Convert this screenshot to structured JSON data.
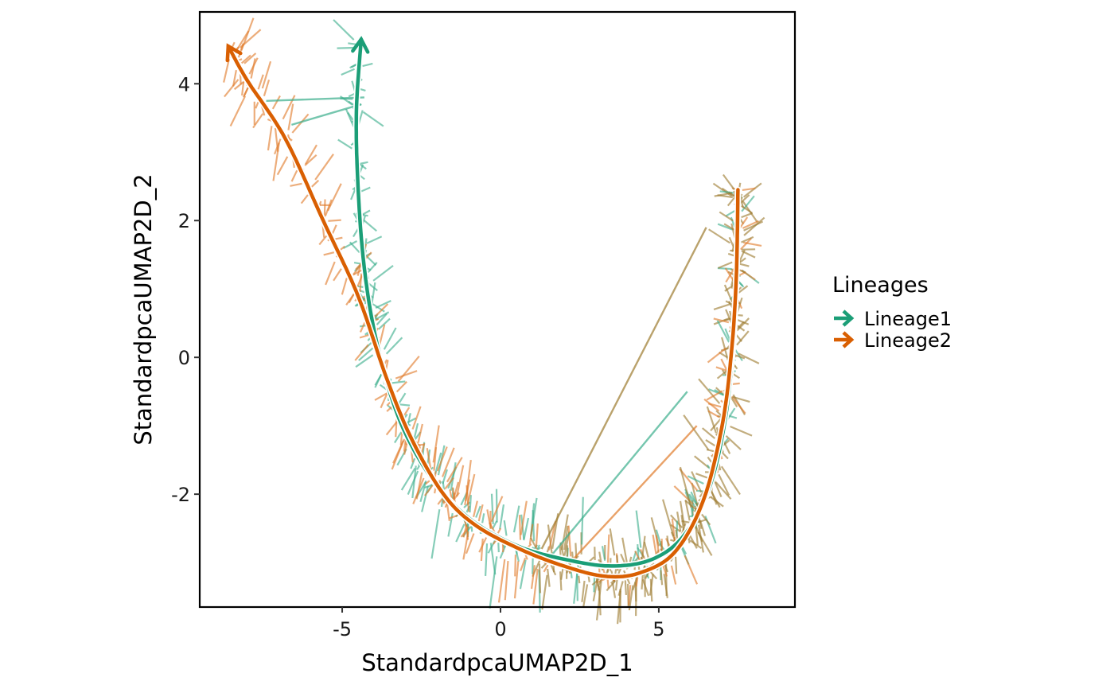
{
  "chart_data": {
    "type": "line",
    "xlabel": "StandardpcaUMAP2D_1",
    "ylabel": "StandardpcaUMAP2D_2",
    "xlim": [
      -9.5,
      9.3
    ],
    "ylim": [
      -3.65,
      5.05
    ],
    "x_ticks": [
      -5,
      0,
      5
    ],
    "y_ticks": [
      -2,
      0,
      2,
      4
    ],
    "x_tick_labels": [
      "-5",
      "0",
      "5"
    ],
    "y_tick_labels": [
      "-2",
      "0",
      "2",
      "4"
    ],
    "grid": false,
    "legend": {
      "title": "Lineages",
      "placement": "right"
    },
    "series": [
      {
        "name": "Lineage1",
        "color": "#1B9E77",
        "curve": [
          [
            7.5,
            2.4
          ],
          [
            7.45,
            1.2
          ],
          [
            7.35,
            0.2
          ],
          [
            7.1,
            -0.9
          ],
          [
            6.6,
            -1.9
          ],
          [
            5.8,
            -2.6
          ],
          [
            4.8,
            -2.95
          ],
          [
            3.5,
            -3.05
          ],
          [
            2.0,
            -2.95
          ],
          [
            0.5,
            -2.75
          ],
          [
            -1.0,
            -2.35
          ],
          [
            -2.2,
            -1.75
          ],
          [
            -3.2,
            -0.9
          ],
          [
            -3.9,
            0.2
          ],
          [
            -4.3,
            1.3
          ],
          [
            -4.5,
            2.5
          ],
          [
            -4.55,
            3.6
          ],
          [
            -4.4,
            4.65
          ]
        ]
      },
      {
        "name": "Lineage2",
        "color": "#D95F02",
        "curve": [
          [
            7.5,
            2.45
          ],
          [
            7.45,
            1.2
          ],
          [
            7.3,
            0.1
          ],
          [
            7.0,
            -1.0
          ],
          [
            6.4,
            -2.1
          ],
          [
            5.5,
            -2.85
          ],
          [
            4.4,
            -3.15
          ],
          [
            3.3,
            -3.2
          ],
          [
            2.0,
            -3.05
          ],
          [
            0.6,
            -2.8
          ],
          [
            -0.8,
            -2.45
          ],
          [
            -1.8,
            -2.0
          ],
          [
            -2.8,
            -1.2
          ],
          [
            -3.6,
            -0.3
          ],
          [
            -4.5,
            0.9
          ],
          [
            -5.6,
            2.0
          ],
          [
            -6.8,
            3.2
          ],
          [
            -8.0,
            4.05
          ],
          [
            -8.6,
            4.55
          ]
        ]
      }
    ]
  }
}
